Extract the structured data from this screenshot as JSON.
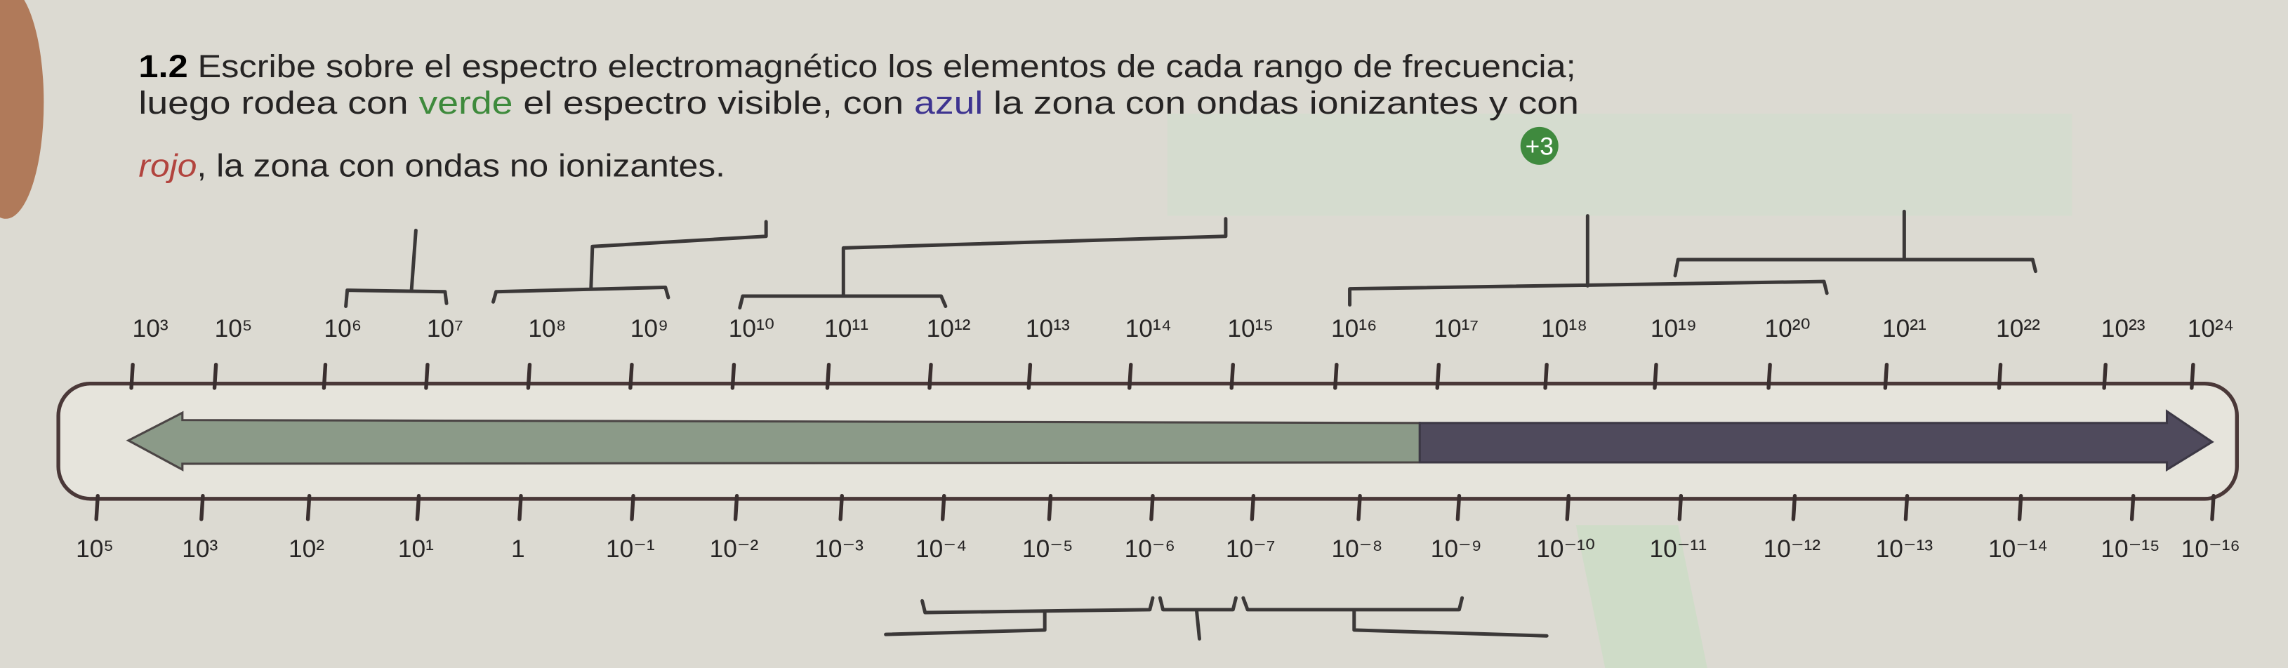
{
  "instruction": {
    "number": "1.2",
    "lines": [
      [
        {
          "text": "Escribe sobre el espectro electromagnético los elementos de cada rango de frecuencia;"
        }
      ],
      [
        {
          "text": "luego rodea con "
        },
        {
          "text": "verde",
          "color": "#3e8a3c"
        },
        {
          "text": " el espectro visible, con "
        },
        {
          "text": "azul",
          "color": "#3e3490"
        },
        {
          "text": " la zona con ondas ionizantes y con"
        }
      ],
      [
        {
          "text": "rojo",
          "color": "#b2443e",
          "style": "italic"
        },
        {
          "text": ", la zona con ondas no ionizantes."
        }
      ]
    ]
  },
  "badge": "+3",
  "spectrum": {
    "frequency_labels": [
      "10³",
      "10⁵",
      "10⁶",
      "10⁷",
      "10⁸",
      "10⁹",
      "10¹⁰",
      "10¹¹",
      "10¹²",
      "10¹³",
      "10¹⁴",
      "10¹⁵",
      "10¹⁶",
      "10¹⁷",
      "10¹⁸",
      "10¹⁹",
      "10²⁰",
      "10²¹",
      "10²²",
      "10²³",
      "10²⁴"
    ],
    "wavelength_labels": [
      "10⁵",
      "10³",
      "10²",
      "10¹",
      "1",
      "10⁻¹",
      "10⁻²",
      "10⁻³",
      "10⁻⁴",
      "10⁻⁵",
      "10⁻⁶",
      "10⁻⁷",
      "10⁻⁸",
      "10⁻⁹",
      "10⁻¹⁰",
      "10⁻¹¹",
      "10⁻¹²",
      "10⁻¹³",
      "10⁻¹⁴",
      "10⁻¹⁵",
      "10⁻¹⁶"
    ]
  }
}
